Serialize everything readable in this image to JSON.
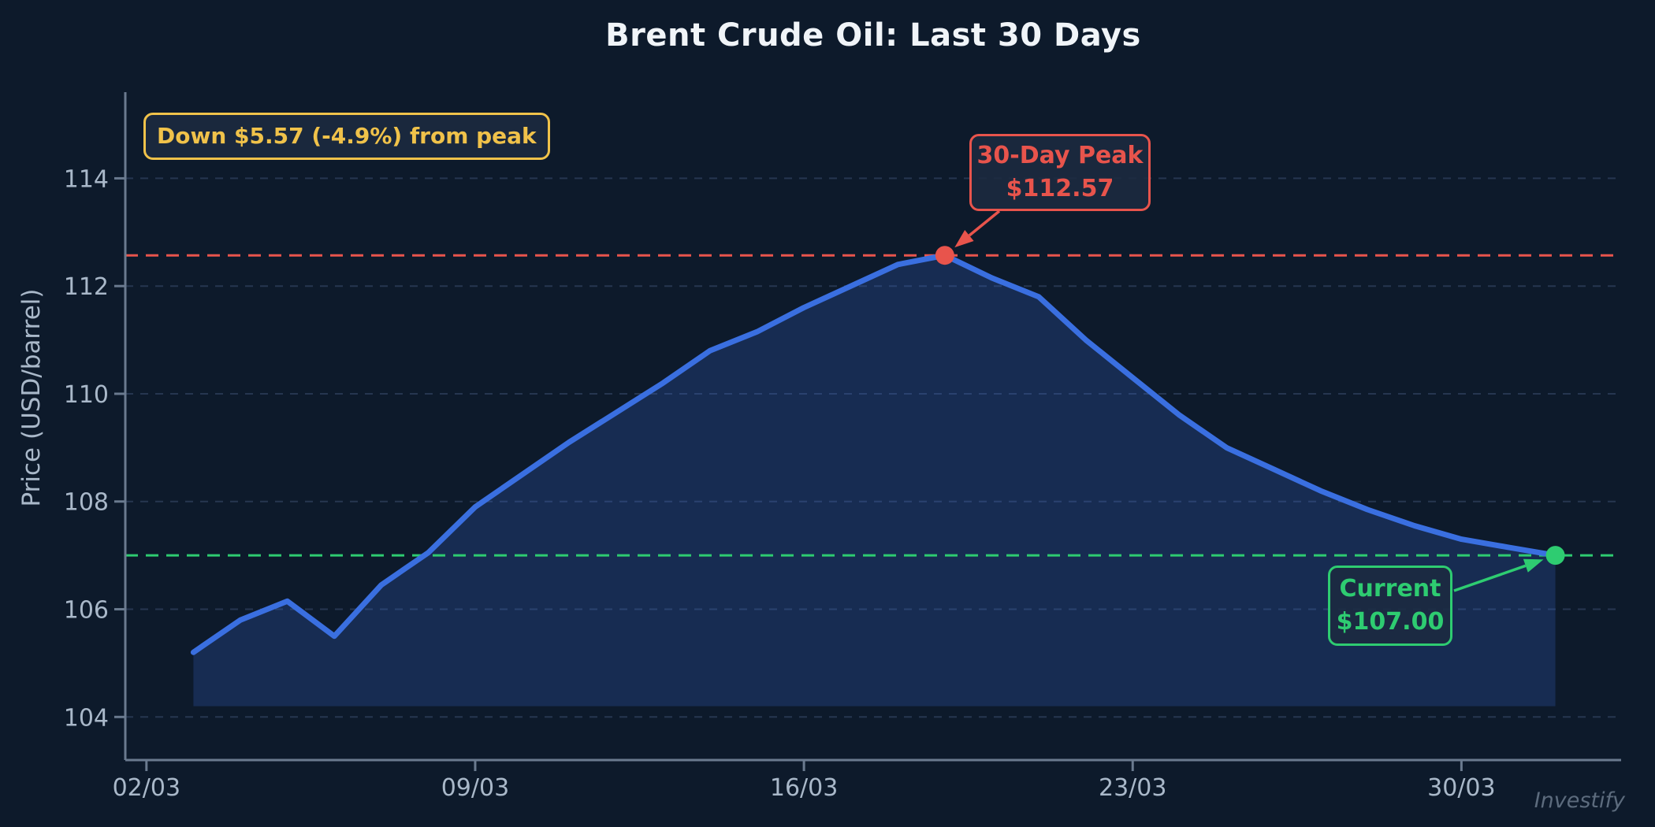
{
  "title": "Brent Crude Oil: Last 30 Days",
  "watermark": "Investify",
  "annotations": {
    "drawdown": {
      "text": "Down $5.57 (-4.9%) from peak"
    },
    "peak": {
      "title": "30-Day Peak",
      "value_label": "$112.57",
      "value": 112.57,
      "day_offset": 17
    },
    "current": {
      "title": "Current",
      "value_label": "$107.00",
      "value": 107.0,
      "day_offset": 30
    }
  },
  "chart_data": {
    "type": "area",
    "title": "Brent Crude Oil: Last 30 Days",
    "xlabel": "",
    "ylabel": "Price (USD/barrel)",
    "grid": true,
    "legend": "none",
    "x_ticks": [
      {
        "day_offset": 0,
        "label": "02/03"
      },
      {
        "day_offset": 7,
        "label": "09/03"
      },
      {
        "day_offset": 14,
        "label": "16/03"
      },
      {
        "day_offset": 21,
        "label": "23/03"
      },
      {
        "day_offset": 28,
        "label": "30/03"
      }
    ],
    "y_ticks": [
      104,
      106,
      108,
      110,
      112,
      114
    ],
    "xlim": [
      -0.45,
      31.4
    ],
    "ylim": [
      103.2,
      115.6
    ],
    "series": [
      {
        "name": "Brent crude price (USD/barrel)",
        "x_day_offsets": [
          1,
          2,
          3,
          4,
          5,
          6,
          7,
          8,
          9,
          10,
          11,
          12,
          13,
          14,
          15,
          16,
          17,
          18,
          19,
          20,
          21,
          22,
          23,
          24,
          25,
          26,
          27,
          28,
          29,
          30
        ],
        "values": [
          105.2,
          105.8,
          106.15,
          105.5,
          106.45,
          107.05,
          107.9,
          108.5,
          109.1,
          109.65,
          110.2,
          110.8,
          111.15,
          111.6,
          112.0,
          112.4,
          112.57,
          112.15,
          111.8,
          111.0,
          110.3,
          109.6,
          109.0,
          108.6,
          108.2,
          107.85,
          107.55,
          107.3,
          107.15,
          107.0
        ],
        "fill_baseline": "min_minus_1"
      }
    ],
    "reference_lines": [
      {
        "value": 112.57,
        "style": "dashed",
        "color_key": "red",
        "meaning": "30-day peak"
      },
      {
        "value": 107.0,
        "style": "dashed",
        "color_key": "green",
        "meaning": "current price"
      }
    ],
    "colors": {
      "background": "#0d1a2b",
      "line": "#3a6fe0",
      "area_fill": "rgba(58,111,224,0.22)",
      "grid": "#263650",
      "axis": "#6a7a8f",
      "tick_text": "#a9b8c9",
      "title_text": "#f0f4f8",
      "red": "#e8544c",
      "green": "#2ecc71",
      "gold": "#f0c24a",
      "watermark_text": "#5c6b7d"
    }
  }
}
